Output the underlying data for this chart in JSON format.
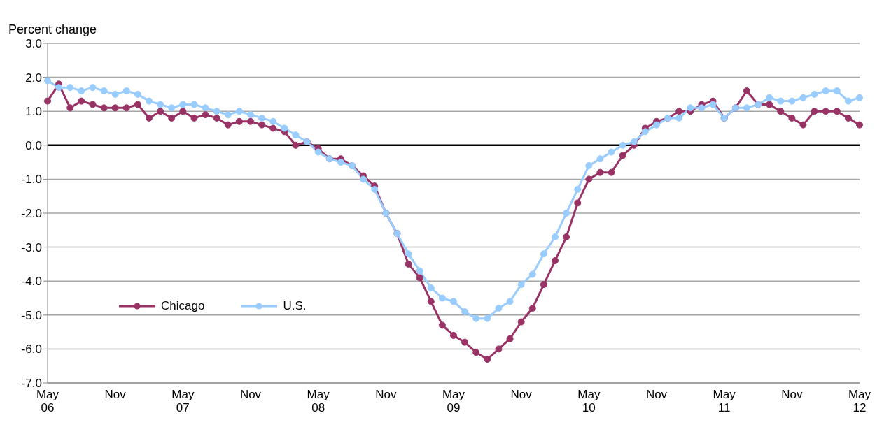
{
  "chart_data": {
    "type": "line",
    "ylabel": "Percent change",
    "categories": [
      "May 06",
      null,
      null,
      null,
      null,
      null,
      "Nov",
      null,
      null,
      null,
      null,
      null,
      "May 07",
      null,
      null,
      null,
      null,
      null,
      "Nov",
      null,
      null,
      null,
      null,
      null,
      "May 08",
      null,
      null,
      null,
      null,
      null,
      "Nov",
      null,
      null,
      null,
      null,
      null,
      "May 09",
      null,
      null,
      null,
      null,
      null,
      "Nov",
      null,
      null,
      null,
      null,
      null,
      "May 10",
      null,
      null,
      null,
      null,
      null,
      "Nov",
      null,
      null,
      null,
      null,
      null,
      "May 11",
      null,
      null,
      null,
      null,
      null,
      "Nov",
      null,
      null,
      null,
      null,
      null,
      "May 12"
    ],
    "series": [
      {
        "name": "Chicago",
        "color": "#993366",
        "values": [
          1.3,
          1.8,
          1.1,
          1.3,
          1.2,
          1.1,
          1.1,
          1.1,
          1.2,
          0.8,
          1.0,
          0.8,
          1.0,
          0.8,
          0.9,
          0.8,
          0.6,
          0.7,
          0.7,
          0.6,
          0.5,
          0.4,
          0.0,
          0.1,
          -0.1,
          -0.4,
          -0.4,
          -0.6,
          -0.9,
          -1.2,
          -2.0,
          -2.6,
          -3.5,
          -3.9,
          -4.6,
          -5.3,
          -5.6,
          -5.8,
          -6.1,
          -6.3,
          -6.0,
          -5.7,
          -5.2,
          -4.8,
          -4.1,
          -3.4,
          -2.7,
          -1.7,
          -1.0,
          -0.8,
          -0.8,
          -0.3,
          0.0,
          0.5,
          0.7,
          0.8,
          1.0,
          1.0,
          1.2,
          1.3,
          0.8,
          1.1,
          1.6,
          1.2,
          1.2,
          1.0,
          0.8,
          0.6,
          1.0,
          1.0,
          1.0,
          0.8,
          0.6
        ]
      },
      {
        "name": "U.S.",
        "color": "#99ccff",
        "values": [
          1.9,
          1.7,
          1.7,
          1.6,
          1.7,
          1.6,
          1.5,
          1.6,
          1.5,
          1.3,
          1.2,
          1.1,
          1.2,
          1.2,
          1.1,
          1.0,
          0.9,
          1.0,
          0.9,
          0.8,
          0.7,
          0.5,
          0.3,
          0.1,
          -0.2,
          -0.4,
          -0.5,
          -0.6,
          -1.0,
          -1.3,
          -2.0,
          -2.6,
          -3.2,
          -3.7,
          -4.2,
          -4.5,
          -4.6,
          -4.9,
          -5.1,
          -5.1,
          -4.8,
          -4.6,
          -4.1,
          -3.8,
          -3.2,
          -2.7,
          -2.0,
          -1.3,
          -0.6,
          -0.4,
          -0.2,
          0.0,
          0.1,
          0.4,
          0.6,
          0.8,
          0.8,
          1.1,
          1.1,
          1.2,
          0.8,
          1.1,
          1.1,
          1.2,
          1.4,
          1.3,
          1.3,
          1.4,
          1.5,
          1.6,
          1.6,
          1.3,
          1.4
        ]
      }
    ],
    "ylim": [
      -7,
      3
    ],
    "yticks": [
      {
        "value": -7,
        "label": "-7.0"
      },
      {
        "value": -6,
        "label": "-6.0"
      },
      {
        "value": -5,
        "label": "-5.0"
      },
      {
        "value": -4,
        "label": "-4.0"
      },
      {
        "value": -3,
        "label": "-3.0"
      },
      {
        "value": -2,
        "label": "-2.0"
      },
      {
        "value": -1,
        "label": "-1.0"
      },
      {
        "value": 0,
        "label": "0.0"
      },
      {
        "value": 1,
        "label": "1.0"
      },
      {
        "value": 2,
        "label": "2.0"
      },
      {
        "value": 3,
        "label": "3.0"
      }
    ],
    "ref_lines": [
      {
        "axis": "y",
        "value": 0,
        "color": "#000000"
      }
    ],
    "grid": "y",
    "legend": "left",
    "marker": "circle",
    "line_style": "solid"
  }
}
